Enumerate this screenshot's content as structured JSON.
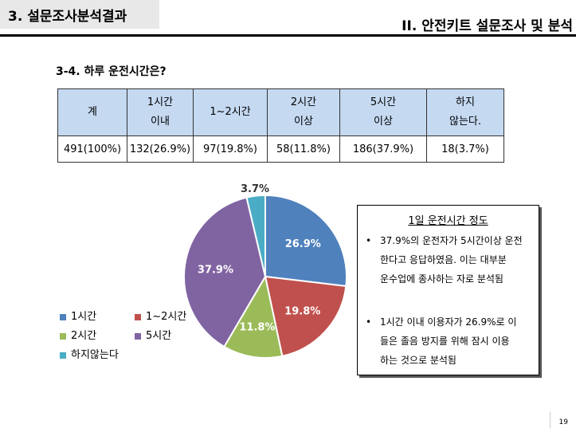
{
  "header": {
    "left_title": "3. 설문조사분석결과",
    "right_title": "II. 안전키트 설문조사 및 분석"
  },
  "section_title": "3-4. 하루 운전시간은?",
  "table": {
    "headers": [
      [
        "계"
      ],
      [
        "1시간",
        "이내"
      ],
      [
        "1~2시간"
      ],
      [
        "2시간",
        "이상"
      ],
      [
        "5시간",
        "이상"
      ],
      [
        "하지",
        "않는다."
      ]
    ],
    "values": [
      "491(100%)",
      "132(26.9%)",
      "97(19.8%)",
      "58(11.8%)",
      "186(37.9%)",
      "18(3.7%)"
    ]
  },
  "chart_data": {
    "type": "pie",
    "categories": [
      "1시간",
      "1~2시간",
      "2시간",
      "5시간",
      "하지않는다"
    ],
    "values": [
      26.9,
      19.8,
      11.8,
      37.9,
      3.7
    ],
    "labels": [
      "26.9%",
      "19.8%",
      "11.8%",
      "37.9%",
      "3.7%"
    ],
    "colors": [
      "#4f81bd",
      "#c0504d",
      "#9bbb59",
      "#8064a2",
      "#4bacc6"
    ],
    "legend_position": "bottom-left"
  },
  "note": {
    "title": "1일 운전시간 정도",
    "bullets": [
      {
        "symbol": "•",
        "lines": [
          "37.9%의 운전자가 5시간이상 운전",
          "한다고 응답하였음.  이는 대부분",
          "운수업에 종사하는 자로 분석됨"
        ]
      },
      {
        "symbol": "•",
        "lines": [
          "1시간 이내 이용자가 26.9%로 이",
          "들은 졸음 방지를 위해 잠시 이용",
          "하는 것으로 분석됨"
        ]
      }
    ]
  },
  "page_number": "19"
}
